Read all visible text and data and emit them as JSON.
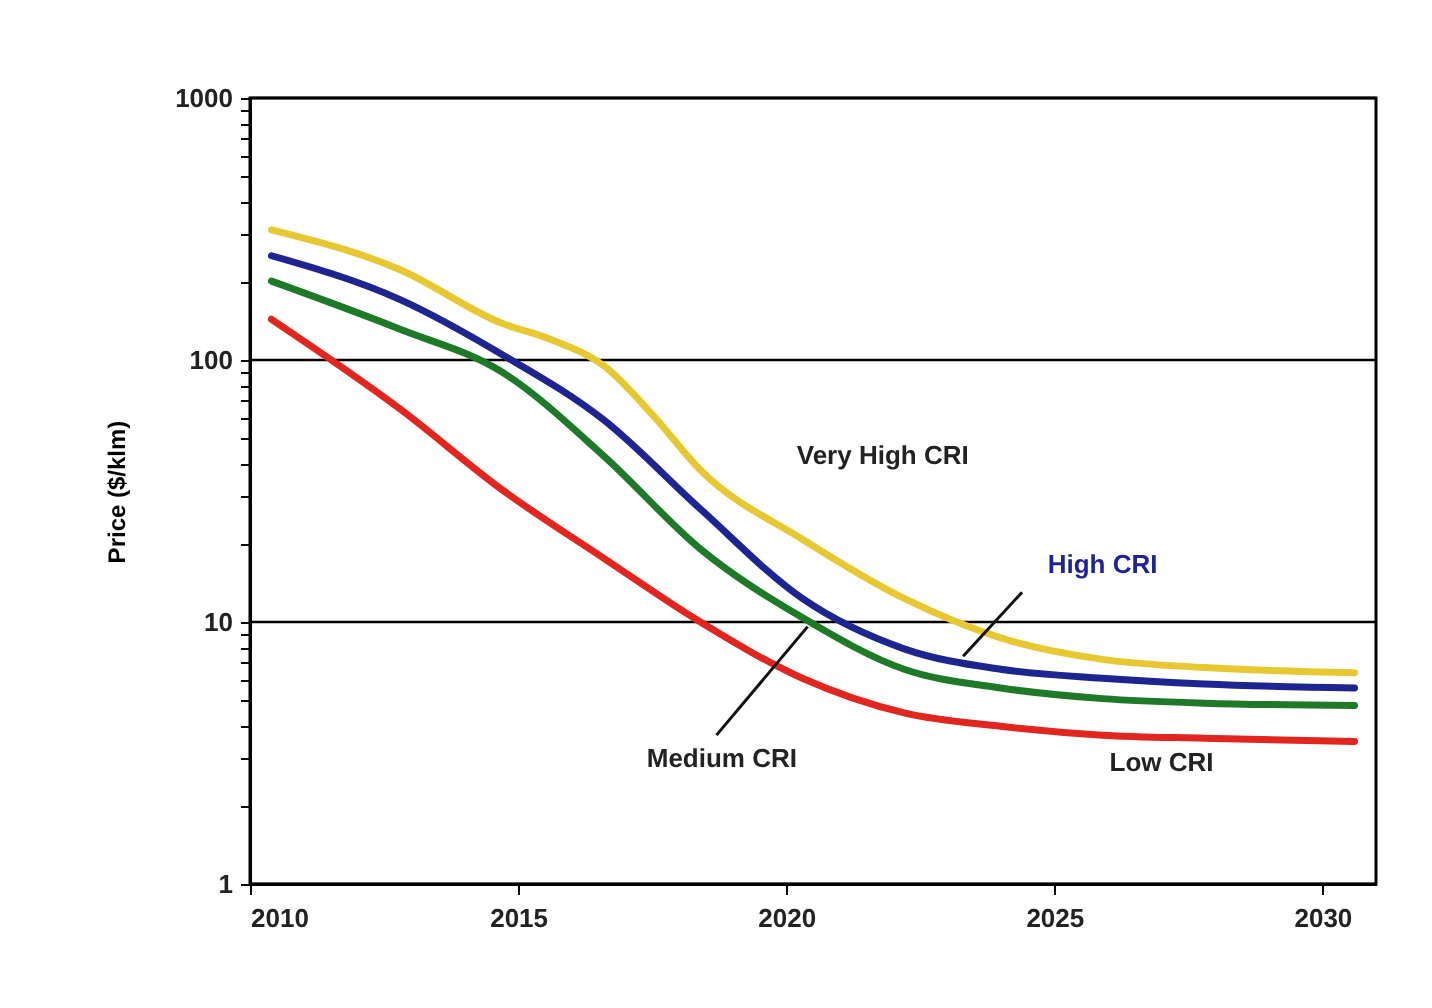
{
  "chart_data": {
    "type": "line",
    "ylabel": "Price ($/klm)",
    "log": true,
    "grid": "y",
    "x": [
      2010.4,
      2012.8,
      2014.7,
      2016.6,
      2018.4,
      2020.3,
      2022.2,
      2024,
      2025.9,
      2027.8,
      2030.6
    ],
    "series": [
      {
        "name": "Very High CRI",
        "color": "#e8c832",
        "x": [
          2010.4,
          2012.8,
          2014.7,
          2015.6,
          2016.6,
          2017.5,
          2018.4,
          2020.3,
          2022.2,
          2024,
          2025.9,
          2027.8,
          2030.6
        ],
        "values": [
          314,
          221,
          138,
          120,
          95,
          62,
          38,
          20.7,
          12.3,
          8.7,
          7.2,
          6.7,
          6.4
        ]
      },
      {
        "name": "High CRI",
        "color": "#1f2590",
        "values": [
          250,
          170,
          105,
          59,
          27,
          12.3,
          7.9,
          6.6,
          6.1,
          5.8,
          5.6
        ]
      },
      {
        "name": "Medium CRI",
        "color": "#1e7a28",
        "values": [
          200,
          131,
          90,
          43,
          19,
          10.4,
          6.6,
          5.6,
          5.1,
          4.9,
          4.8
        ]
      },
      {
        "name": "Low CRI",
        "color": "#e0261e",
        "values": [
          143,
          65,
          32,
          17.5,
          10,
          6.1,
          4.5,
          4.0,
          3.7,
          3.6,
          3.5
        ]
      }
    ],
    "xlim": [
      2010,
      2031
    ],
    "xticks": [
      2010,
      2015,
      2020,
      2025,
      2030
    ],
    "ylim": [
      1,
      1000
    ],
    "yticks": [
      1,
      {
        "value": 2,
        "label": null
      },
      {
        "value": 3,
        "label": null
      },
      {
        "value": 4,
        "label": null
      },
      {
        "value": 5,
        "label": null
      },
      {
        "value": 6,
        "label": null
      },
      {
        "value": 7,
        "label": null
      },
      {
        "value": 8,
        "label": null
      },
      {
        "value": 9,
        "label": null
      },
      10,
      {
        "value": 20,
        "label": null
      },
      {
        "value": 30,
        "label": null
      },
      {
        "value": 40,
        "label": null
      },
      {
        "value": 50,
        "label": null
      },
      {
        "value": 60,
        "label": null
      },
      {
        "value": 70,
        "label": null
      },
      {
        "value": 80,
        "label": null
      },
      {
        "value": 90,
        "label": null
      },
      100,
      {
        "value": 200,
        "label": null
      },
      {
        "value": 300,
        "label": null
      },
      {
        "value": 400,
        "label": null
      },
      {
        "value": 500,
        "label": null
      },
      {
        "value": 600,
        "label": null
      },
      {
        "value": 700,
        "label": null
      },
      {
        "value": 800,
        "label": null
      },
      {
        "value": 900,
        "label": null
      },
      1000
    ]
  }
}
